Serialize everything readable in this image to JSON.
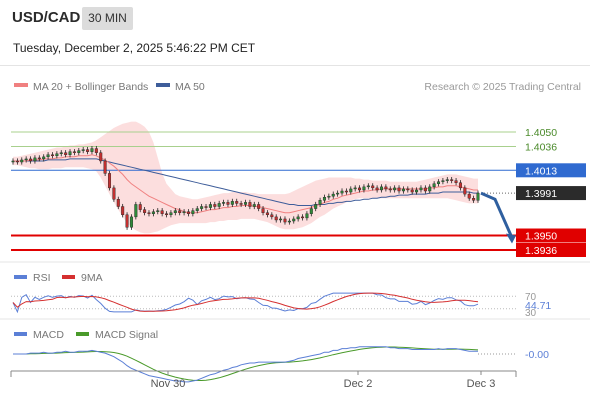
{
  "header": {
    "symbol": "USD/CAD",
    "timeframe": "30 MIN",
    "datetime": "Tuesday, December 2, 2025 5:46:22 PM CET"
  },
  "legend": {
    "ma20": "MA 20 + Bollinger Bands",
    "ma50": "MA 50",
    "credit": "Research © 2025 Trading Central",
    "rsi": "RSI",
    "rsi_ma": "9MA",
    "macd": "MACD",
    "macd_signal": "MACD Signal"
  },
  "colors": {
    "ma20": "#f08080",
    "ma50": "#3e5d9a",
    "bollinger_fill": "#fbd3d3",
    "resistance": "#a8d08d",
    "pivot": "#2f6ad0",
    "support": "#e00000",
    "candle_up": "#2f8a3a",
    "candle_down": "#c23030",
    "rsi": "#5b7fd6",
    "rsi_ma": "#d53030",
    "macd": "#5b7fd6",
    "macd_signal": "#4a9a2a"
  },
  "chart_data": [
    {
      "type": "candlestick",
      "xlabels": [
        "Nov 30",
        "Dec 2",
        "Dec 3"
      ],
      "levels": [
        {
          "label": "1.4050",
          "value": 1.405,
          "kind": "resistance"
        },
        {
          "label": "1.4036",
          "value": 1.4036,
          "kind": "resistance"
        },
        {
          "label": "1.4013",
          "value": 1.4013,
          "kind": "pivot"
        },
        {
          "label": "1.3991",
          "value": 1.3991,
          "kind": "last"
        },
        {
          "label": "1.3950",
          "value": 1.395,
          "kind": "support"
        },
        {
          "label": "1.3936",
          "value": 1.3936,
          "kind": "support"
        }
      ],
      "close": [
        1.4022,
        1.4021,
        1.4023,
        1.4024,
        1.4022,
        1.4025,
        1.4024,
        1.4026,
        1.4028,
        1.4027,
        1.4029,
        1.403,
        1.4028,
        1.4031,
        1.403,
        1.4032,
        1.4033,
        1.4031,
        1.4034,
        1.403,
        1.4022,
        1.401,
        1.3996,
        1.3985,
        1.3978,
        1.397,
        1.3958,
        1.3968,
        1.398,
        1.3975,
        1.3972,
        1.3971,
        1.3973,
        1.3974,
        1.3971,
        1.397,
        1.3972,
        1.3974,
        1.3972,
        1.3973,
        1.3971,
        1.3974,
        1.3976,
        1.3978,
        1.3977,
        1.398,
        1.3978,
        1.3981,
        1.3982,
        1.398,
        1.3983,
        1.3981,
        1.398,
        1.3982,
        1.3978,
        1.398,
        1.3976,
        1.3972,
        1.397,
        1.3968,
        1.3965,
        1.3966,
        1.3963,
        1.3964,
        1.3966,
        1.3968,
        1.3967,
        1.3971,
        1.3976,
        1.398,
        1.3984,
        1.3987,
        1.3988,
        1.399,
        1.3991,
        1.3993,
        1.3992,
        1.3995,
        1.3996,
        1.3994,
        1.3997,
        1.3998,
        1.3996,
        1.3994,
        1.3997,
        1.3995,
        1.3994,
        1.3996,
        1.3993,
        1.3995,
        1.3994,
        1.3992,
        1.3994,
        1.3996,
        1.3993,
        1.3997,
        1.4,
        1.4002,
        1.4003,
        1.4004,
        1.4003,
        1.4001,
        1.3996,
        1.399,
        1.3986,
        1.3984,
        1.3991
      ],
      "ma20": [
        1.4022,
        1.4022,
        1.4022,
        1.4022,
        1.4023,
        1.4023,
        1.4023,
        1.4024,
        1.4024,
        1.4024,
        1.4025,
        1.4025,
        1.4026,
        1.4026,
        1.4026,
        1.4027,
        1.4027,
        1.4027,
        1.4028,
        1.4027,
        1.4025,
        1.4023,
        1.402,
        1.4017,
        1.4013,
        1.4009,
        1.4004,
        1.4,
        1.3997,
        1.3994,
        1.3991,
        1.3988,
        1.3986,
        1.3984,
        1.3982,
        1.398,
        1.3978,
        1.3976,
        1.3975,
        1.3973,
        1.3972,
        1.3972,
        1.3972,
        1.3973,
        1.3974,
        1.3975,
        1.3975,
        1.3976,
        1.3977,
        1.3977,
        1.3978,
        1.3978,
        1.3979,
        1.3979,
        1.3979,
        1.3978,
        1.3978,
        1.3977,
        1.3976,
        1.3975,
        1.3974,
        1.3973,
        1.3972,
        1.3972,
        1.3973,
        1.3974,
        1.3975,
        1.3976,
        1.3977,
        1.3979,
        1.398,
        1.3982,
        1.3983,
        1.3985,
        1.3986,
        1.3988,
        1.3989,
        1.399,
        1.3991,
        1.3992,
        1.3993,
        1.3993,
        1.3994,
        1.3994,
        1.3995,
        1.3995,
        1.3995,
        1.3995,
        1.3995,
        1.3995,
        1.3995,
        1.3995,
        1.3995,
        1.3995,
        1.3995,
        1.3996,
        1.3996,
        1.3997,
        1.3997,
        1.3998,
        1.3998,
        1.3998,
        1.3997,
        1.3996,
        1.3995,
        1.3994,
        1.3994
      ],
      "ma50": [
        1.4022,
        1.4022,
        1.4022,
        1.4022,
        1.4022,
        1.4022,
        1.4022,
        1.4022,
        1.4023,
        1.4023,
        1.4023,
        1.4023,
        1.4023,
        1.4024,
        1.4024,
        1.4024,
        1.4024,
        1.4024,
        1.4024,
        1.4024,
        1.4023,
        1.4022,
        1.4021,
        1.402,
        1.4019,
        1.4018,
        1.4017,
        1.4016,
        1.4015,
        1.4014,
        1.4013,
        1.4012,
        1.4011,
        1.401,
        1.4009,
        1.4008,
        1.4007,
        1.4006,
        1.4005,
        1.4004,
        1.4003,
        1.4002,
        1.4001,
        1.4,
        1.3999,
        1.3998,
        1.3997,
        1.3996,
        1.3995,
        1.3994,
        1.3993,
        1.3992,
        1.3991,
        1.399,
        1.3989,
        1.3988,
        1.3987,
        1.3986,
        1.3985,
        1.3984,
        1.3983,
        1.3982,
        1.3981,
        1.398,
        1.398,
        1.3979,
        1.3979,
        1.3979,
        1.3979,
        1.398,
        1.398,
        1.398,
        1.3981,
        1.3981,
        1.3982,
        1.3982,
        1.3983,
        1.3983,
        1.3984,
        1.3984,
        1.3985,
        1.3985,
        1.3986,
        1.3986,
        1.3987,
        1.3987,
        1.3988,
        1.3988,
        1.3989,
        1.3989,
        1.3989,
        1.399,
        1.399,
        1.399,
        1.399,
        1.3991,
        1.3991,
        1.3991,
        1.3992,
        1.3992,
        1.3992,
        1.3992,
        1.3992,
        1.3992,
        1.3992,
        1.3991,
        1.3991
      ],
      "boll_upper": [
        1.4026,
        1.4026,
        1.4027,
        1.4028,
        1.4029,
        1.403,
        1.4031,
        1.4032,
        1.4033,
        1.4034,
        1.4035,
        1.4035,
        1.4036,
        1.4037,
        1.4037,
        1.4038,
        1.4038,
        1.4039,
        1.404,
        1.4042,
        1.4045,
        1.4048,
        1.4051,
        1.4054,
        1.4056,
        1.4058,
        1.4059,
        1.406,
        1.406,
        1.4058,
        1.4055,
        1.405,
        1.404,
        1.4025,
        1.401,
        1.4,
        1.3995,
        1.399,
        1.3988,
        1.3987,
        1.3986,
        1.3985,
        1.3985,
        1.3986,
        1.3987,
        1.3988,
        1.3989,
        1.399,
        1.3991,
        1.3991,
        1.3992,
        1.3992,
        1.3992,
        1.3992,
        1.3991,
        1.3991,
        1.399,
        1.399,
        1.399,
        1.399,
        1.399,
        1.399,
        1.399,
        1.3991,
        1.3993,
        1.3995,
        1.3997,
        1.3999,
        1.4001,
        1.4003,
        1.4004,
        1.4005,
        1.4006,
        1.4006,
        1.4006,
        1.4006,
        1.4006,
        1.4006,
        1.4005,
        1.4005,
        1.4004,
        1.4004,
        1.4003,
        1.4003,
        1.4003,
        1.4003,
        1.4002,
        1.4002,
        1.4002,
        1.4002,
        1.4002,
        1.4002,
        1.4002,
        1.4003,
        1.4004,
        1.4005,
        1.4006,
        1.4007,
        1.4008,
        1.4009,
        1.4009,
        1.4009,
        1.4008,
        1.4007,
        1.4006,
        1.4005,
        1.4005
      ],
      "boll_lower": [
        1.4018,
        1.4018,
        1.4017,
        1.4016,
        1.4015,
        1.4015,
        1.4014,
        1.4014,
        1.4014,
        1.4015,
        1.4015,
        1.4015,
        1.4016,
        1.4016,
        1.4016,
        1.4016,
        1.4016,
        1.4015,
        1.4014,
        1.4012,
        1.4006,
        1.3998,
        1.399,
        1.3982,
        1.3975,
        1.3968,
        1.3962,
        1.3958,
        1.3955,
        1.3953,
        1.3952,
        1.3952,
        1.3953,
        1.3954,
        1.3956,
        1.3958,
        1.396,
        1.3961,
        1.3962,
        1.3962,
        1.3962,
        1.3962,
        1.3962,
        1.3962,
        1.3962,
        1.3963,
        1.3963,
        1.3964,
        1.3964,
        1.3965,
        1.3965,
        1.3965,
        1.3966,
        1.3966,
        1.3966,
        1.3966,
        1.3965,
        1.3964,
        1.3963,
        1.3961,
        1.3959,
        1.3957,
        1.3956,
        1.3956,
        1.3956,
        1.3957,
        1.3958,
        1.396,
        1.3962,
        1.3965,
        1.3968,
        1.397,
        1.3973,
        1.3976,
        1.3978,
        1.398,
        1.3982,
        1.3984,
        1.3985,
        1.3986,
        1.3986,
        1.3986,
        1.3986,
        1.3986,
        1.3986,
        1.3986,
        1.3986,
        1.3986,
        1.3986,
        1.3986,
        1.3986,
        1.3986,
        1.3986,
        1.3986,
        1.3986,
        1.3986,
        1.3986,
        1.3986,
        1.3986,
        1.3986,
        1.3985,
        1.3984,
        1.3983,
        1.3982,
        1.3981,
        1.3981,
        1.3981
      ],
      "forecast": [
        1.3991,
        1.3985,
        1.395
      ]
    },
    {
      "type": "line",
      "name_ref": "RSI",
      "level_labels": [
        "70",
        "44.71",
        "30"
      ],
      "levels": [
        70,
        30
      ],
      "last_value": 44.71,
      "ylim": [
        10,
        90
      ]
    },
    {
      "type": "line",
      "name_ref": "MACD",
      "last_value_label": "-0.00",
      "last_value": 0.0
    }
  ]
}
